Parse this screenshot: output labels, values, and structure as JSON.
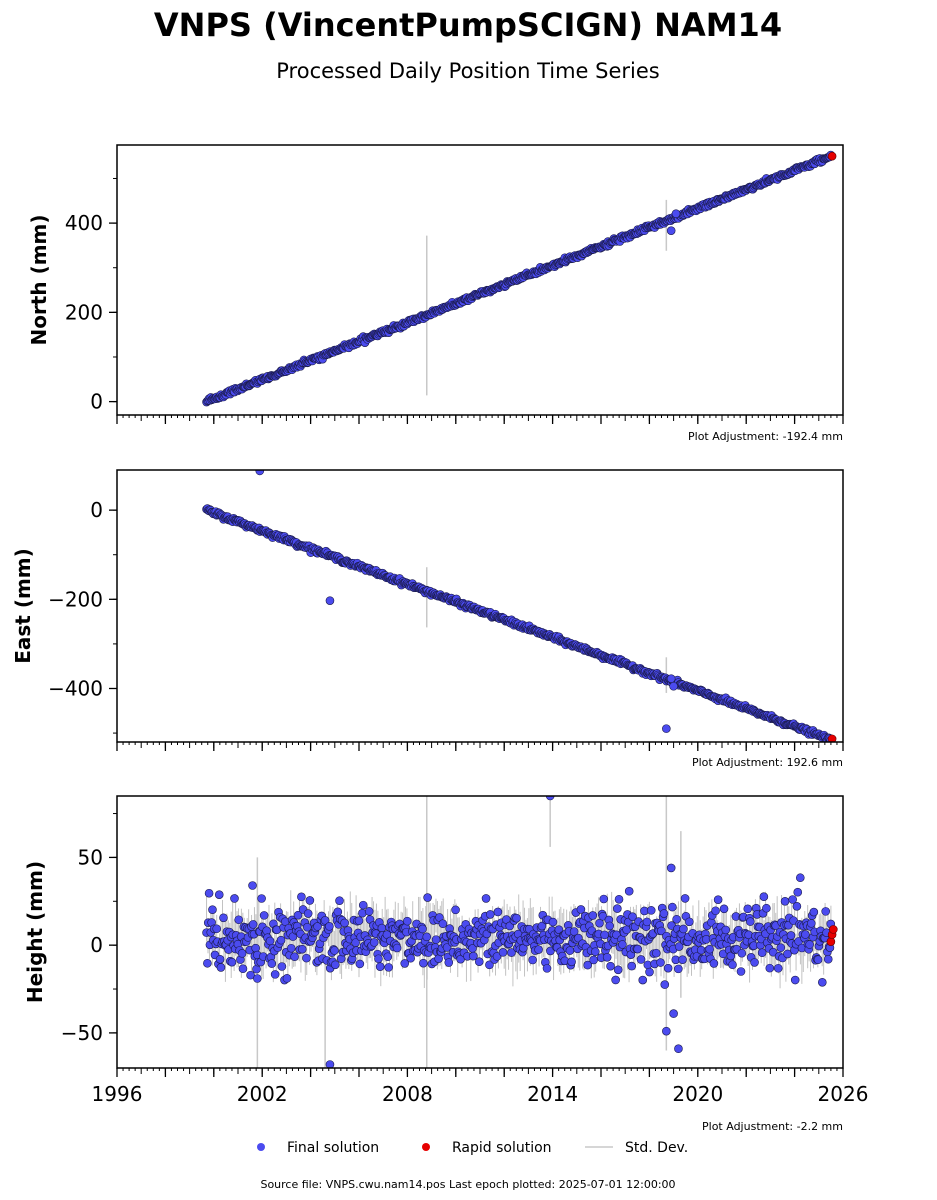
{
  "title": "VNPS (VincentPumpSCIGN) NAM14",
  "subtitle": "Processed Daily Position Time Series",
  "colors": {
    "final": "#4b4bef",
    "final_edge": "#1a1a4a",
    "rapid": "#e60000",
    "stddev": "#c8c8c8",
    "axis": "#000000"
  },
  "legend": {
    "final_label": "Final solution",
    "rapid_label": "Rapid solution",
    "stddev_label": "Std. Dev."
  },
  "footer": "Source file: VNPS.cwu.nam14.pos  Last epoch plotted: 2025-07-01 12:00:00",
  "chart_data": [
    {
      "type": "scatter",
      "ylabel": "North (mm)",
      "adjustment_label": "Plot Adjustment: -192.4 mm",
      "xlim": [
        1996,
        2026
      ],
      "ylim": [
        -30,
        575
      ],
      "yticks": [
        0,
        200,
        400
      ],
      "ytick_labels": [
        "0",
        "200",
        "400"
      ],
      "show_xtick_labels": false,
      "trend": {
        "x_start": 1999.7,
        "y_start": 0,
        "x_end": 2025.5,
        "y_end": 550
      },
      "noise_mm": 2.5,
      "outliers": [
        {
          "x": 2018.9,
          "y": 383
        },
        {
          "x": 2019.1,
          "y": 421
        }
      ],
      "stddev_spikes": [
        {
          "x": 2008.8,
          "y_low": 14,
          "y_high": 372
        },
        {
          "x": 2018.7,
          "y_low": 338,
          "y_high": 452
        }
      ],
      "rapid": [
        {
          "x": 2025.55,
          "y": 550
        }
      ]
    },
    {
      "type": "scatter",
      "ylabel": "East (mm)",
      "adjustment_label": "Plot Adjustment: 192.6 mm",
      "xlim": [
        1996,
        2026
      ],
      "ylim": [
        -520,
        90
      ],
      "yticks": [
        -400,
        -200,
        0
      ],
      "ytick_labels": [
        "−400",
        "−200",
        "0"
      ],
      "show_xtick_labels": false,
      "trend": {
        "x_start": 1999.7,
        "y_start": 0,
        "x_end": 2025.5,
        "y_end": -515
      },
      "noise_mm": 2.5,
      "outliers": [
        {
          "x": 2001.9,
          "y": 88
        },
        {
          "x": 2004.8,
          "y": -203
        },
        {
          "x": 2018.7,
          "y": -490
        },
        {
          "x": 2018.9,
          "y": -378
        },
        {
          "x": 2019.0,
          "y": -395
        }
      ],
      "stddev_spikes": [
        {
          "x": 2008.8,
          "y_low": -263,
          "y_high": -128
        },
        {
          "x": 2018.7,
          "y_low": -410,
          "y_high": -330
        }
      ],
      "rapid": [
        {
          "x": 2025.55,
          "y": -513
        }
      ]
    },
    {
      "type": "scatter",
      "ylabel": "Height (mm)",
      "adjustment_label": "Plot Adjustment: -2.2 mm",
      "xlim": [
        1996,
        2026
      ],
      "ylim": [
        -70,
        85
      ],
      "yticks": [
        -50,
        0,
        50
      ],
      "ytick_labels": [
        "−50",
        "0",
        "50"
      ],
      "xticks": [
        1996,
        2002,
        2008,
        2014,
        2020,
        2026
      ],
      "xtick_labels": [
        "1996",
        "2002",
        "2008",
        "2014",
        "2020",
        "2026"
      ],
      "show_xtick_labels": true,
      "trend": {
        "x_start": 1999.7,
        "y_start": 4,
        "x_end": 2025.5,
        "y_end": 4
      },
      "noise_mm": 9,
      "outliers": [
        {
          "x": 2001.6,
          "y": 34
        },
        {
          "x": 2001.8,
          "y": -19
        },
        {
          "x": 2004.8,
          "y": -68
        },
        {
          "x": 2013.9,
          "y": 85
        },
        {
          "x": 2018.7,
          "y": -49
        },
        {
          "x": 2018.9,
          "y": 44
        },
        {
          "x": 2019.0,
          "y": -39
        },
        {
          "x": 2019.2,
          "y": -59
        }
      ],
      "stddev_spikes": [
        {
          "x": 2001.8,
          "y_low": -70,
          "y_high": 50
        },
        {
          "x": 2004.6,
          "y_low": -70,
          "y_high": -10
        },
        {
          "x": 2008.8,
          "y_low": -70,
          "y_high": 85
        },
        {
          "x": 2013.9,
          "y_low": 56,
          "y_high": 85
        },
        {
          "x": 2018.7,
          "y_low": -60,
          "y_high": 85
        },
        {
          "x": 2019.3,
          "y_low": -30,
          "y_high": 65
        }
      ],
      "rapid": [
        {
          "x": 2025.5,
          "y": 2
        },
        {
          "x": 2025.55,
          "y": 6
        },
        {
          "x": 2025.6,
          "y": 9
        }
      ]
    }
  ]
}
